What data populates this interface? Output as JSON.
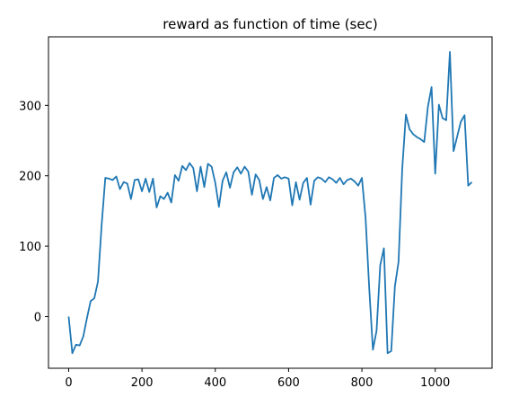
{
  "chart_data": {
    "type": "line",
    "title": "reward as function of time (sec)",
    "x": [
      0,
      10,
      20,
      30,
      40,
      50,
      60,
      70,
      80,
      90,
      100,
      110,
      120,
      130,
      140,
      150,
      160,
      170,
      180,
      190,
      200,
      210,
      220,
      230,
      240,
      250,
      260,
      270,
      280,
      290,
      300,
      310,
      320,
      330,
      340,
      350,
      360,
      370,
      380,
      390,
      400,
      410,
      420,
      430,
      440,
      450,
      460,
      470,
      480,
      490,
      500,
      510,
      520,
      530,
      540,
      550,
      560,
      570,
      580,
      590,
      600,
      610,
      620,
      630,
      640,
      650,
      660,
      670,
      680,
      690,
      700,
      710,
      720,
      730,
      740,
      750,
      760,
      770,
      780,
      790,
      800,
      810,
      820,
      830,
      840,
      850,
      860,
      870,
      880,
      890,
      900,
      910,
      920,
      930,
      940,
      950,
      960,
      970,
      980,
      990,
      1000,
      1010,
      1020,
      1030,
      1040,
      1050,
      1060,
      1070,
      1080,
      1090,
      1100
    ],
    "series": [
      {
        "name": "reward",
        "color": "#1f77b4",
        "values": [
          0,
          -52,
          -40,
          -41,
          -28,
          -2,
          22,
          26,
          50,
          130,
          197,
          196,
          194,
          199,
          181,
          191,
          189,
          167,
          194,
          195,
          178,
          196,
          177,
          196,
          155,
          171,
          167,
          176,
          162,
          201,
          193,
          214,
          208,
          218,
          211,
          178,
          213,
          184,
          217,
          213,
          190,
          156,
          193,
          205,
          183,
          205,
          212,
          203,
          213,
          206,
          173,
          202,
          194,
          167,
          184,
          165,
          197,
          201,
          196,
          198,
          196,
          158,
          191,
          166,
          190,
          197,
          159,
          193,
          198,
          196,
          191,
          198,
          195,
          190,
          197,
          188,
          194,
          196,
          192,
          186,
          197,
          140,
          40,
          -47,
          -20,
          73,
          97,
          -52,
          -49,
          43,
          78,
          210,
          287,
          266,
          259,
          255,
          252,
          248,
          298,
          326,
          203,
          301,
          282,
          279,
          376,
          235,
          256,
          277,
          286,
          186,
          191
        ]
      }
    ],
    "xlim": [
      -55,
      1155
    ],
    "ylim": [
      -73.4,
      397.4
    ],
    "xticks": [
      0,
      200,
      400,
      600,
      800,
      1000
    ],
    "yticks": [
      0,
      100,
      200,
      300
    ]
  }
}
